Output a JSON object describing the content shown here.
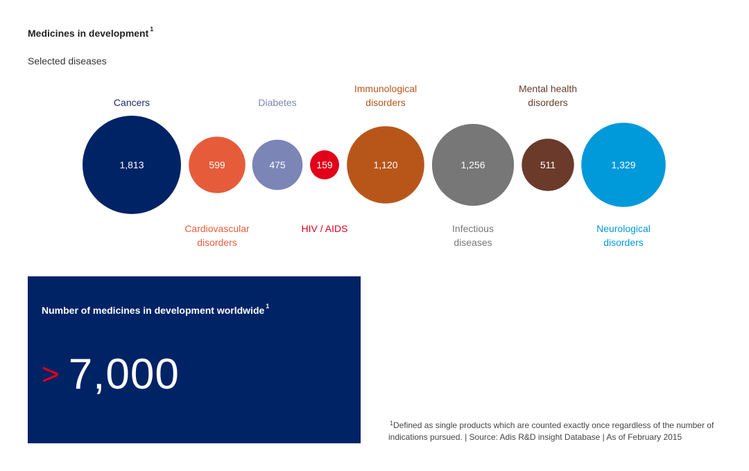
{
  "title": "Medicines in development",
  "title_note": "1",
  "subtitle": "Selected diseases",
  "chart_data": {
    "type": "bubble",
    "series": [
      {
        "label_lines": [
          "Cancers"
        ],
        "value": 1813,
        "display": "1,813",
        "color": "#002366",
        "label_position": "top"
      },
      {
        "label_lines": [
          "Cardiovascular",
          "disorders"
        ],
        "value": 599,
        "display": "599",
        "color": "#e65c3a",
        "label_position": "bottom"
      },
      {
        "label_lines": [
          "Diabetes"
        ],
        "value": 475,
        "display": "475",
        "color": "#7b85b6",
        "label_position": "top"
      },
      {
        "label_lines": [
          "HIV / AIDS"
        ],
        "value": 159,
        "display": "159",
        "color": "#e2001a",
        "label_position": "bottom"
      },
      {
        "label_lines": [
          "Immunological",
          "disorders"
        ],
        "value": 1120,
        "display": "1,120",
        "color": "#b8561a",
        "label_position": "top"
      },
      {
        "label_lines": [
          "Infectious",
          "diseases"
        ],
        "value": 1256,
        "display": "1,256",
        "color": "#777777",
        "label_position": "bottom"
      },
      {
        "label_lines": [
          "Mental health",
          "disorders"
        ],
        "value": 511,
        "display": "511",
        "color": "#6b3a2a",
        "label_position": "top"
      },
      {
        "label_lines": [
          "Neurological",
          "disorders"
        ],
        "value": 1329,
        "display": "1,329",
        "color": "#0099d9",
        "label_position": "bottom"
      }
    ],
    "label_colors": [
      "#1a2b6b",
      "#e65c3a",
      "#7b85b6",
      "#e2001a",
      "#b8561a",
      "#777777",
      "#6b3a2a",
      "#0099d9"
    ]
  },
  "panel": {
    "title": "Number of medicines in development worldwide",
    "title_note": "1",
    "prefix": ">",
    "value": "7,000"
  },
  "footnote": {
    "marker": "1",
    "text": "Defined as single products which are counted exactly once regardless of the number of indications pursued. | Source: Adis R&D insight Database | As of February 2015"
  }
}
